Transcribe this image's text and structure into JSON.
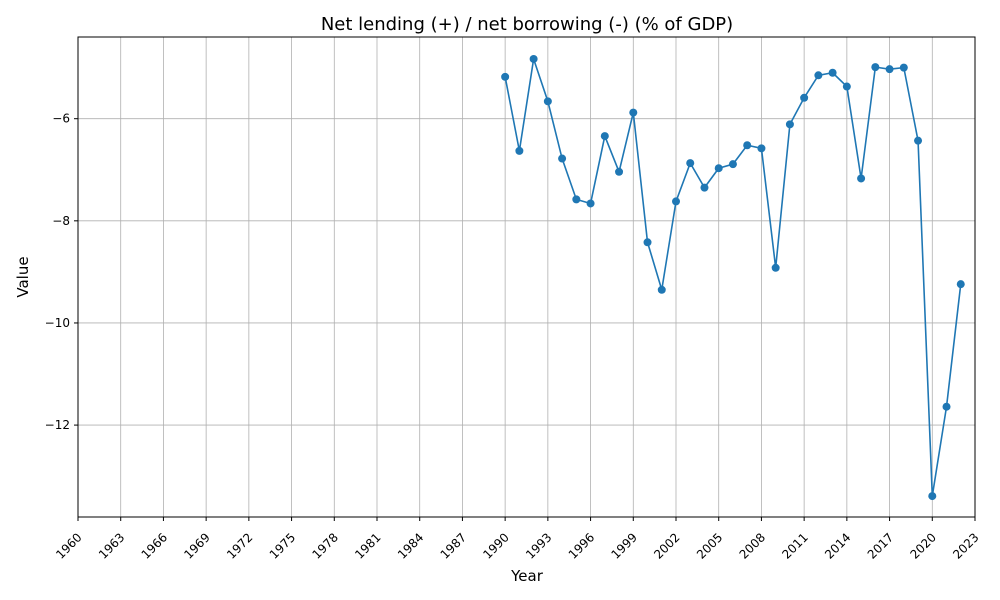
{
  "chart_data": {
    "type": "line",
    "title": "Net lending (+) / net borrowing (-) (% of GDP)",
    "xlabel": "Year",
    "ylabel": "Value",
    "xlim": [
      1960,
      2023
    ],
    "ylim": [
      -13.8,
      -4.4
    ],
    "x_ticks": [
      1960,
      1963,
      1966,
      1969,
      1972,
      1975,
      1978,
      1981,
      1984,
      1987,
      1990,
      1993,
      1996,
      1999,
      2002,
      2005,
      2008,
      2011,
      2014,
      2017,
      2020,
      2023
    ],
    "y_ticks": [
      -12,
      -10,
      -8,
      -6
    ],
    "y_tick_labels": [
      "−12",
      "−10",
      "−8",
      "−6"
    ],
    "grid": true,
    "series": [
      {
        "color": "#1f77b4",
        "marker": "circle",
        "x": [
          1990,
          1991,
          1992,
          1993,
          1994,
          1995,
          1996,
          1997,
          1998,
          1999,
          2000,
          2001,
          2002,
          2003,
          2004,
          2005,
          2006,
          2007,
          2008,
          2009,
          2010,
          2011,
          2012,
          2013,
          2014,
          2015,
          2016,
          2017,
          2018,
          2019,
          2020,
          2021,
          2022
        ],
        "y": [
          -5.18,
          -6.63,
          -4.83,
          -5.66,
          -6.78,
          -7.58,
          -7.66,
          -6.34,
          -7.04,
          -5.88,
          -8.42,
          -9.35,
          -7.62,
          -6.87,
          -7.35,
          -6.97,
          -6.89,
          -6.52,
          -6.58,
          -8.92,
          -6.11,
          -5.59,
          -5.15,
          -5.1,
          -5.37,
          -7.17,
          -4.99,
          -5.03,
          -5.0,
          -6.43,
          -13.39,
          -11.64,
          -9.24
        ]
      }
    ]
  }
}
